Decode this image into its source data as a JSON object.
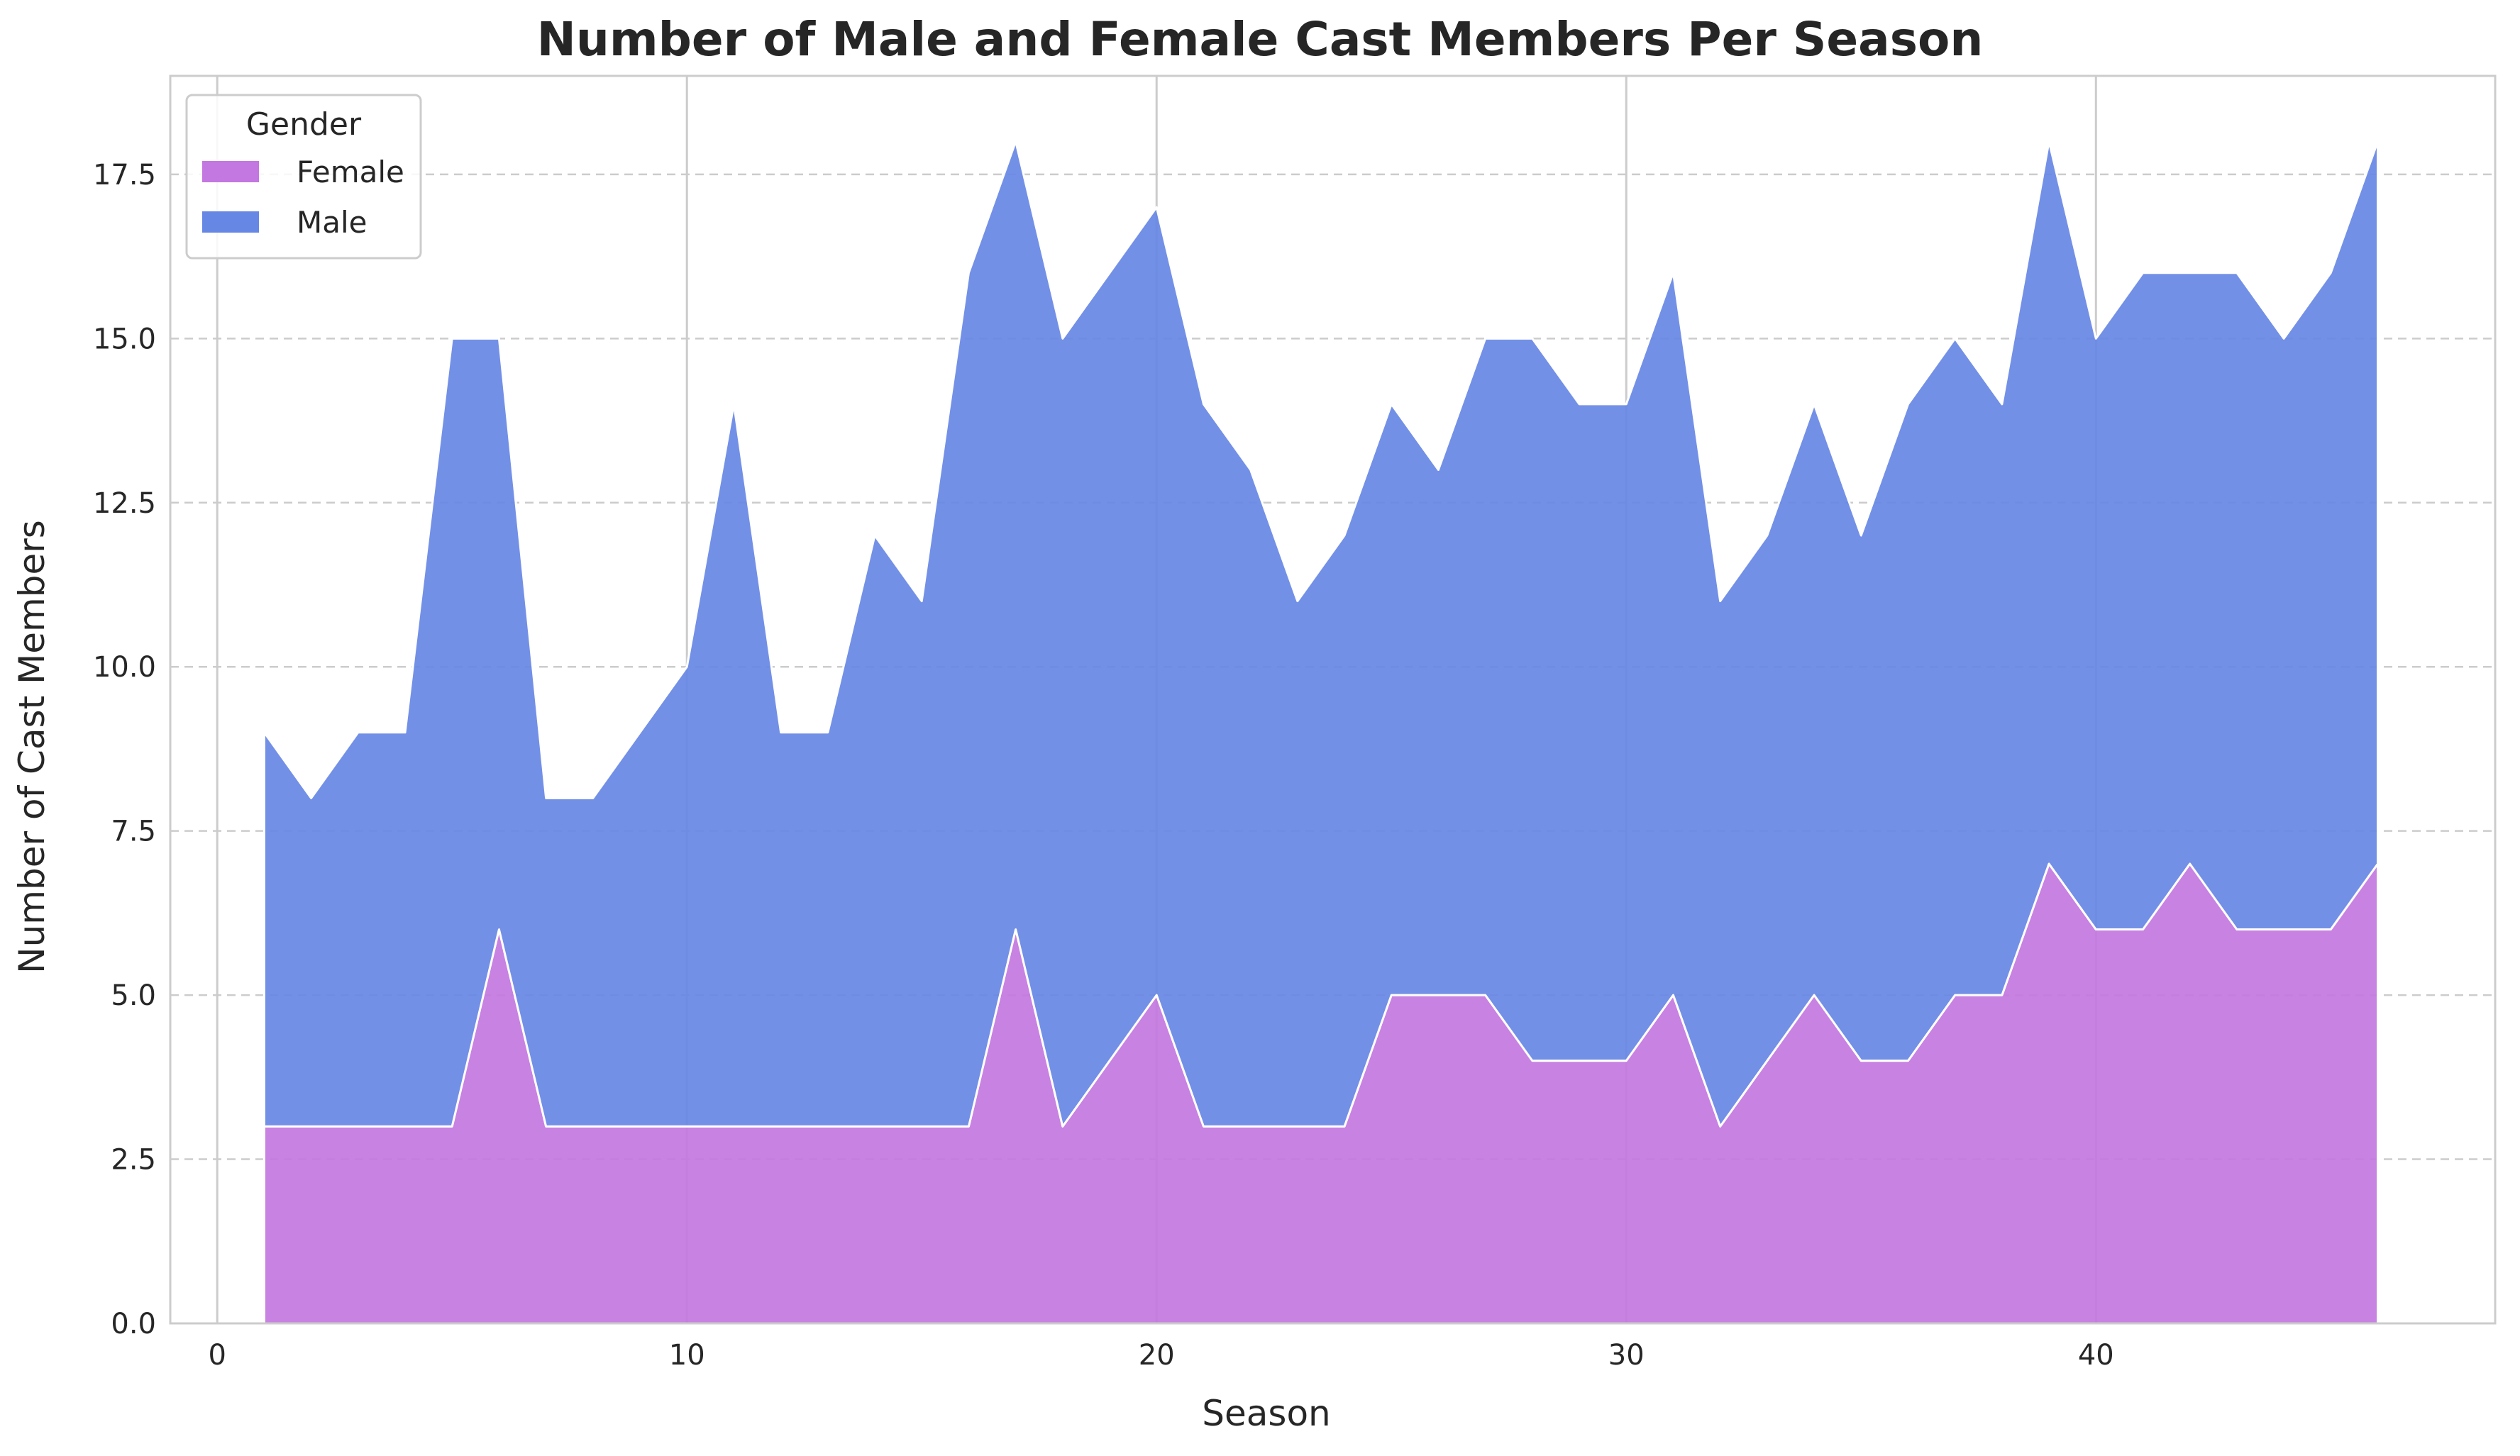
{
  "chart_data": {
    "type": "area",
    "stacked": true,
    "title": "Number of Male and Female Cast Members Per Season",
    "xlabel": "Season",
    "ylabel": "Number of Cast Members",
    "xlim": [
      -1,
      48.5
    ],
    "ylim": [
      0,
      19
    ],
    "x_ticks": [
      0,
      10,
      20,
      30,
      40
    ],
    "y_ticks": [
      0.0,
      2.5,
      5.0,
      7.5,
      10.0,
      12.5,
      15.0,
      17.5
    ],
    "x_tick_labels": [
      "0",
      "10",
      "20",
      "30",
      "40"
    ],
    "y_tick_labels": [
      "0.0",
      "2.5",
      "5.0",
      "7.5",
      "10.0",
      "12.5",
      "15.0",
      "17.5"
    ],
    "grid": {
      "x": "solid",
      "y": "dashed"
    },
    "legend": {
      "title": "Gender",
      "placement": "top-left"
    },
    "x": [
      1,
      2,
      3,
      4,
      5,
      6,
      7,
      8,
      9,
      10,
      11,
      12,
      13,
      14,
      15,
      16,
      17,
      18,
      19,
      20,
      21,
      22,
      23,
      24,
      25,
      26,
      27,
      28,
      29,
      30,
      31,
      32,
      33,
      34,
      35,
      36,
      37,
      38,
      39,
      40,
      41,
      42,
      43,
      44,
      45,
      46
    ],
    "series": [
      {
        "name": "Female",
        "color": "#c377e0",
        "values": [
          3,
          3,
          3,
          3,
          3,
          6,
          3,
          3,
          3,
          3,
          3,
          3,
          3,
          3,
          3,
          3,
          6,
          3,
          4,
          5,
          3,
          3,
          3,
          3,
          5,
          5,
          5,
          4,
          4,
          4,
          5,
          3,
          4,
          5,
          4,
          4,
          5,
          5,
          7,
          6,
          6,
          7,
          6,
          6,
          6,
          7
        ]
      },
      {
        "name": "Male",
        "color": "#6787e5",
        "values": [
          6,
          5,
          6,
          6,
          12,
          9,
          5,
          5,
          6,
          7,
          11,
          6,
          6,
          9,
          8,
          13,
          12,
          12,
          12,
          12,
          11,
          10,
          8,
          9,
          9,
          8,
          10,
          11,
          10,
          10,
          11,
          8,
          8,
          9,
          8,
          10,
          10,
          9,
          11,
          9,
          10,
          9,
          10,
          9,
          10,
          11
        ]
      }
    ]
  }
}
